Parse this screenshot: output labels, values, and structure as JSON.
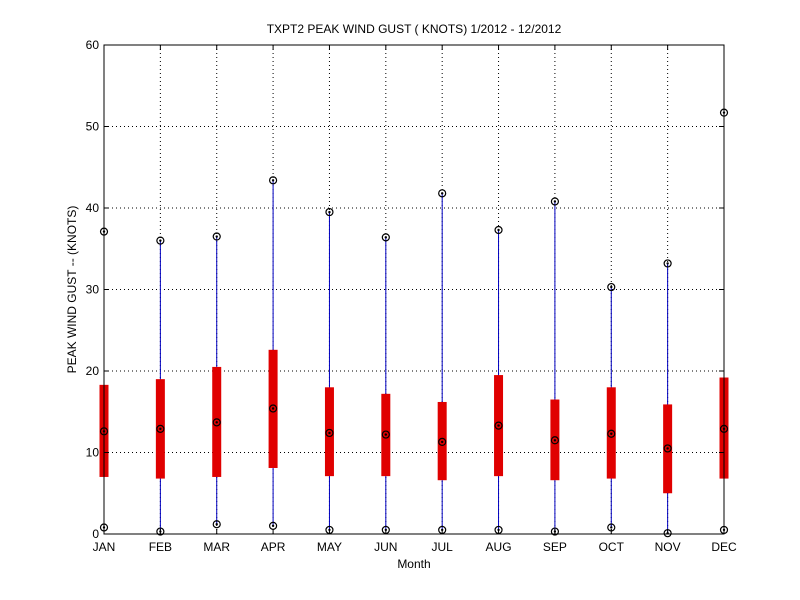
{
  "chart_data": {
    "type": "box",
    "title": "TXPT2  PEAK WIND GUST ( KNOTS) 1/2012 - 12/2012",
    "xlabel": "Month",
    "ylabel": "PEAK WIND GUST -- (KNOTS)",
    "ylim": [
      0,
      60
    ],
    "yticks": [
      "0",
      "10",
      "20",
      "30",
      "40",
      "50",
      "60"
    ],
    "categories": [
      "JAN",
      "FEB",
      "MAR",
      "APR",
      "MAY",
      "JUN",
      "JUL",
      "AUG",
      "SEP",
      "OCT",
      "NOV",
      "DEC"
    ],
    "min": [
      0.8,
      0.3,
      1.2,
      1.0,
      0.5,
      0.5,
      0.5,
      0.5,
      0.3,
      0.8,
      0.1,
      0.5
    ],
    "q1": [
      7.0,
      6.8,
      7.0,
      8.1,
      7.1,
      7.1,
      6.6,
      7.1,
      6.6,
      6.8,
      5.0,
      6.8
    ],
    "median": [
      12.6,
      12.9,
      13.7,
      15.4,
      12.4,
      12.2,
      11.3,
      13.3,
      11.5,
      12.3,
      10.5,
      12.9
    ],
    "q3": [
      18.3,
      19.0,
      20.5,
      22.6,
      18.0,
      17.2,
      16.2,
      19.5,
      16.5,
      18.0,
      15.9,
      19.2
    ],
    "max": [
      37.1,
      36.0,
      36.5,
      43.4,
      39.5,
      36.4,
      41.8,
      37.3,
      40.8,
      30.3,
      33.2,
      51.7
    ],
    "grid": true,
    "colors": {
      "whisker": "#0000c0",
      "box": "#e00000",
      "marker": "#000000",
      "axes": "#000000",
      "grid": "#000000"
    }
  }
}
